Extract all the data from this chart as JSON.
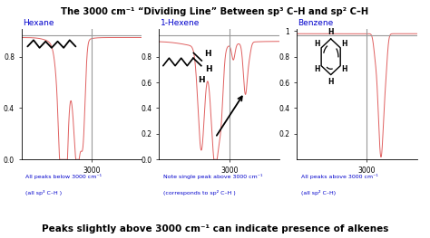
{
  "title": "The 3000 cm⁻¹ “Dividing Line” Between sp³ C–H and sp² C–H",
  "footer": "Peaks slightly above 3000 cm⁻¹ can indicate presence of alkenes",
  "title_color": "#000000",
  "footer_color": "#000000",
  "background_color": "#ffffff",
  "panels": [
    {
      "label": "Hexane",
      "caption_line1": "All peaks below 3000 cm⁻¹",
      "caption_line2": "(all sp³ C–H )"
    },
    {
      "label": "1-Hexene",
      "caption_line1": "Note single peak above 3000 cm⁻¹",
      "caption_line2": "(corresponds to sp² C–H )"
    },
    {
      "label": "Benzene",
      "caption_line1": "All peaks above 3000 cm⁻¹",
      "caption_line2": "(all sp² C–H)"
    }
  ],
  "ir_color": "#e06060",
  "divline_color": "#999999",
  "label_color": "#0000cc",
  "caption_color": "#0000cc",
  "xlim": [
    2650,
    3250
  ],
  "ylim": [
    0.0,
    1.02
  ]
}
